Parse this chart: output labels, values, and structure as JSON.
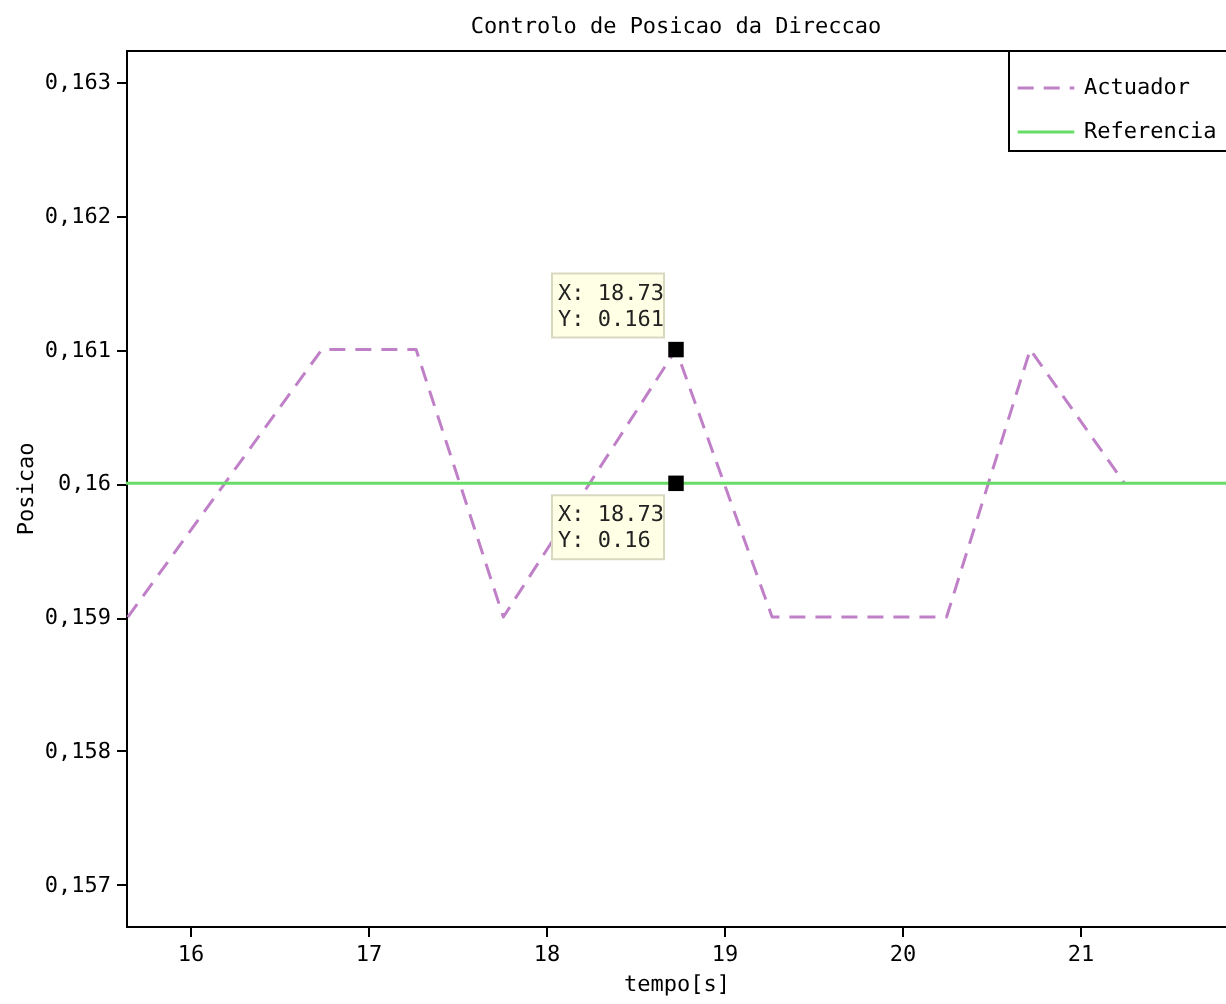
{
  "chart_data": {
    "type": "line",
    "title": "Controlo de Posicao da Direccao",
    "xlabel": "tempo[s]",
    "ylabel": "Posicao",
    "xlim": [
      15.64,
      21.82
    ],
    "xticks": [
      16,
      17,
      18,
      19,
      20,
      21
    ],
    "ylim": [
      0.15669,
      0.16324
    ],
    "yticks": [
      {
        "value": 0.157,
        "label": "0,157"
      },
      {
        "value": 0.158,
        "label": "0,158"
      },
      {
        "value": 0.159,
        "label": "0,159"
      },
      {
        "value": 0.16,
        "label": "0,16"
      },
      {
        "value": 0.161,
        "label": "0,161"
      },
      {
        "value": 0.162,
        "label": "0,162"
      },
      {
        "value": 0.163,
        "label": "0,163"
      }
    ],
    "series": [
      {
        "name": "Actuador",
        "color": "#c080c8",
        "line_style": "dashed",
        "x": [
          15.65,
          16.74,
          17.27,
          17.76,
          18.73,
          19.27,
          20.25,
          20.72,
          21.25
        ],
        "values": [
          0.159,
          0.161,
          0.161,
          0.159,
          0.161,
          0.159,
          0.159,
          0.161,
          0.16
        ]
      },
      {
        "name": "Referencia",
        "color": "#66dd66",
        "line_style": "solid",
        "x": [
          15.64,
          21.82
        ],
        "values": [
          0.16,
          0.16
        ]
      }
    ],
    "annotations": [
      {
        "text": "X: 18.73\nY: 0.161",
        "x": 18.73,
        "y": 0.161
      },
      {
        "text": "X: 18.73\nY: 0.16",
        "x": 18.73,
        "y": 0.16
      }
    ],
    "legend": "top right",
    "grid": false,
    "marker": "none"
  }
}
